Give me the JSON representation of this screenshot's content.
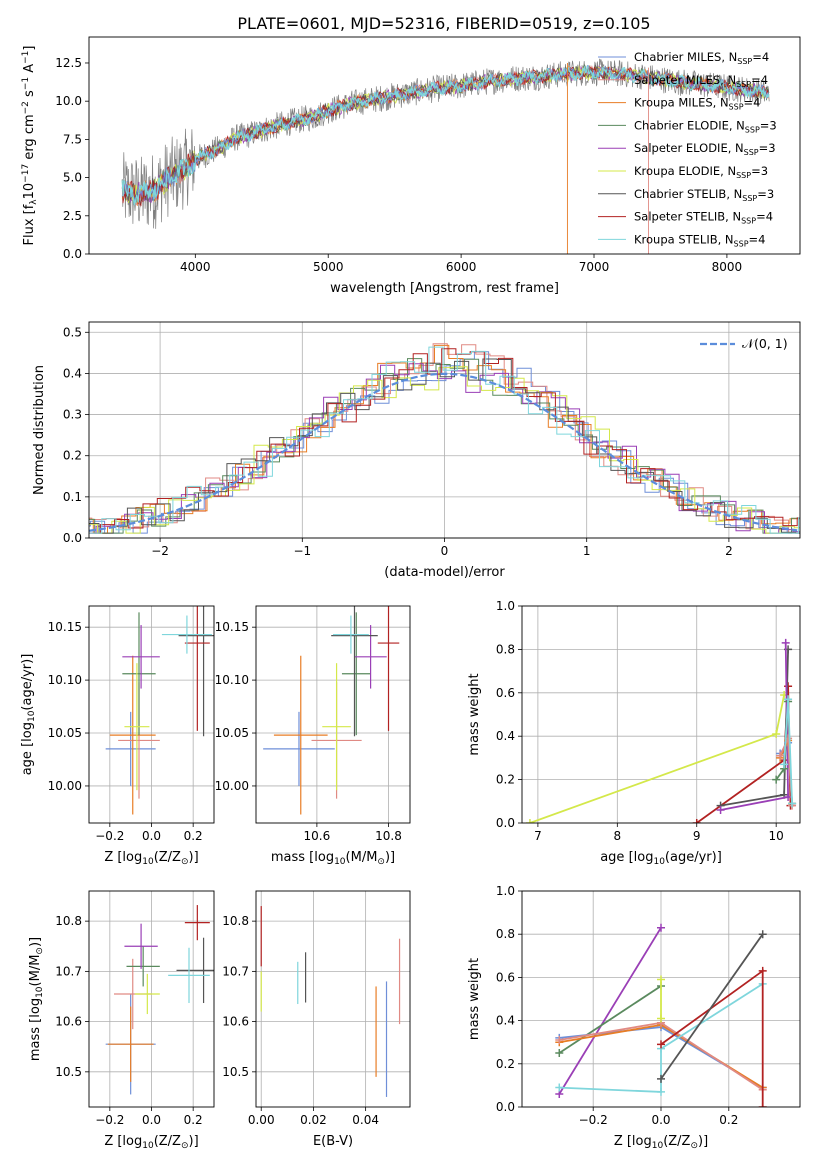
{
  "figure": {
    "title": "PLATE=0601, MJD=52316, FIBERID=0519, z=0.105"
  },
  "colors": {
    "chabrier_miles": "#6f8fd8",
    "salpeter_miles": "#e08a84",
    "kroupa_miles": "#e87d25",
    "chabrier_elodie": "#5a8a5e",
    "salpeter_elodie": "#9a3fb6",
    "kroupa_elodie": "#d4e84a",
    "chabrier_stelib": "#555555",
    "salpeter_stelib": "#b22222",
    "kroupa_stelib": "#7fd6dc",
    "spectrum_data": "#7f7f7f",
    "gaussian": "#5b8ddb",
    "grid": "#b0b0b0"
  },
  "chart_data": [
    {
      "id": "spectrum",
      "type": "line",
      "title": "PLATE=0601, MJD=52316, FIBERID=0519, z=0.105",
      "xlabel": "wavelength [Angstrom, rest frame]",
      "ylabel": "Flux [f",
      "ylabel_sub": "λ",
      "ylabel_rest": "10",
      "ylabel_exp": "−17",
      "ylabel_tail": " erg cm",
      "ylabel_exp2": "−2",
      "ylabel_tail2": " s",
      "ylabel_exp3": "−1",
      "ylabel_tail3": " A",
      "ylabel_exp4": "−1",
      "ylabel_end": "]",
      "xlim": [
        3200,
        8550
      ],
      "ylim": [
        0,
        14.2
      ],
      "xticks": [
        4000,
        5000,
        6000,
        7000,
        8000
      ],
      "xtick_labels": [
        "4000",
        "5000",
        "6000",
        "7000",
        "8000"
      ],
      "yticks": [
        0,
        2.5,
        5,
        7.5,
        10,
        12.5
      ],
      "ytick_labels": [
        "0.0",
        "2.5",
        "5.0",
        "7.5",
        "10.0",
        "12.5"
      ],
      "grid": false,
      "legend_position": "right",
      "legend": [
        {
          "label": "Chabrier MILES, N",
          "sub": "SSP",
          "tail": "=4",
          "color_key": "chabrier_miles"
        },
        {
          "label": "Salpeter MILES, N",
          "sub": "SSP",
          "tail": "=4",
          "color_key": "salpeter_miles"
        },
        {
          "label": "Kroupa MILES, N",
          "sub": "SSP",
          "tail": "=4",
          "color_key": "kroupa_miles"
        },
        {
          "label": "Chabrier ELODIE, N",
          "sub": "SSP",
          "tail": "=3",
          "color_key": "chabrier_elodie"
        },
        {
          "label": "Salpeter ELODIE, N",
          "sub": "SSP",
          "tail": "=3",
          "color_key": "salpeter_elodie"
        },
        {
          "label": "Kroupa ELODIE, N",
          "sub": "SSP",
          "tail": "=3",
          "color_key": "kroupa_elodie"
        },
        {
          "label": "Chabrier STELIB, N",
          "sub": "SSP",
          "tail": "=3",
          "color_key": "chabrier_stelib"
        },
        {
          "label": "Salpeter STELIB, N",
          "sub": "SSP",
          "tail": "=4",
          "color_key": "salpeter_stelib"
        },
        {
          "label": "Kroupa STELIB, N",
          "sub": "SSP",
          "tail": "=4",
          "color_key": "kroupa_stelib"
        }
      ],
      "continuum": {
        "x": [
          3450,
          3600,
          3700,
          3800,
          3900,
          4000,
          4100,
          4200,
          4300,
          4400,
          4500,
          4700,
          4900,
          5000,
          5200,
          5400,
          5600,
          5800,
          6000,
          6200,
          6400,
          6600,
          6800,
          7000,
          7200,
          7400,
          7600,
          7800,
          8000,
          8200,
          8320
        ],
        "y": [
          4.1,
          3.9,
          4.2,
          5.0,
          5.4,
          6.2,
          6.6,
          7.0,
          7.6,
          7.8,
          8.1,
          8.6,
          9.0,
          9.4,
          9.9,
          10.2,
          10.5,
          10.8,
          11.0,
          11.3,
          11.5,
          11.6,
          11.8,
          11.9,
          11.8,
          11.6,
          11.3,
          11.1,
          10.9,
          10.7,
          10.5
        ]
      }
    },
    {
      "id": "residuals",
      "type": "line",
      "xlabel": "(data-model)/error",
      "ylabel": "Normed distribution",
      "xlim": [
        -2.5,
        2.5
      ],
      "ylim": [
        0,
        0.525
      ],
      "xticks": [
        -2,
        -1,
        0,
        1,
        2
      ],
      "xtick_labels": [
        "−2",
        "−1",
        "0",
        "1",
        "2"
      ],
      "yticks": [
        0,
        0.1,
        0.2,
        0.3,
        0.4,
        0.5
      ],
      "ytick_labels": [
        "0.0",
        "0.1",
        "0.2",
        "0.3",
        "0.4",
        "0.5"
      ],
      "grid": true,
      "legend_position": "top-right",
      "legend": [
        {
          "label": "𝒩(0, 1)",
          "color_key": "gaussian"
        }
      ],
      "gaussian": {
        "mu": 0,
        "sigma": 1
      }
    },
    {
      "id": "age-vs-Z",
      "type": "scatter",
      "xlabel": "Z [log",
      "xlabel_sub": "10",
      "xlabel_rest": "(Z/Z",
      "xlabel_sub2": "⊙",
      "xlabel_end": ")]",
      "ylabel": "age  [log",
      "ylabel_sub": "10",
      "ylabel_rest": "(age/yr)]",
      "xlim": [
        -0.3,
        0.3
      ],
      "ylim": [
        9.965,
        10.17
      ],
      "xticks": [
        -0.2,
        0,
        0.2
      ],
      "xtick_labels": [
        "−0.2",
        "0.0",
        "0.2"
      ],
      "yticks": [
        10.0,
        10.05,
        10.1,
        10.15
      ],
      "ytick_labels": [
        "10.00",
        "10.05",
        "10.10",
        "10.15"
      ],
      "grid": true,
      "points": [
        {
          "color_key": "chabrier_miles",
          "x": -0.1,
          "xerr": 0.12,
          "y": 10.035,
          "yerr": 0.035
        },
        {
          "color_key": "salpeter_miles",
          "x": -0.06,
          "xerr": 0.1,
          "y": 10.043,
          "yerr": 0.055
        },
        {
          "color_key": "kroupa_miles",
          "x": -0.09,
          "xerr": 0.11,
          "y": 10.048,
          "yerr": 0.075
        },
        {
          "color_key": "chabrier_elodie",
          "x": -0.06,
          "xerr": 0.08,
          "y": 10.106,
          "yerr": 0.058
        },
        {
          "color_key": "salpeter_elodie",
          "x": -0.05,
          "xerr": 0.09,
          "y": 10.122,
          "yerr": 0.03
        },
        {
          "color_key": "kroupa_elodie",
          "x": -0.07,
          "xerr": 0.06,
          "y": 10.056,
          "yerr": 0.06
        },
        {
          "color_key": "chabrier_stelib",
          "x": 0.25,
          "xerr": 0.12,
          "y": 10.142,
          "yerr": 0.095
        },
        {
          "color_key": "salpeter_stelib",
          "x": 0.22,
          "xerr": 0.06,
          "y": 10.135,
          "yerr": 0.083
        },
        {
          "color_key": "kroupa_stelib",
          "x": 0.17,
          "xerr": 0.12,
          "y": 10.143,
          "yerr": 0.018
        }
      ]
    },
    {
      "id": "age-vs-mass",
      "type": "scatter",
      "xlabel": "mass [log",
      "xlabel_sub": "10",
      "xlabel_rest": "(M/M",
      "xlabel_sub2": "⊙",
      "xlabel_end": ")]",
      "ylabel": "",
      "xlim": [
        10.43,
        10.86
      ],
      "ylim": [
        9.965,
        10.17
      ],
      "xticks": [
        10.6,
        10.8
      ],
      "xtick_labels": [
        "10.6",
        "10.8"
      ],
      "yticks": [
        10.0,
        10.05,
        10.1,
        10.15
      ],
      "ytick_labels": [
        "10.00",
        "10.05",
        "10.10",
        "10.15"
      ],
      "grid": true,
      "points": [
        {
          "color_key": "chabrier_miles",
          "x": 10.55,
          "xerr": 0.1,
          "y": 10.035,
          "yerr": 0.035
        },
        {
          "color_key": "salpeter_miles",
          "x": 10.655,
          "xerr": 0.07,
          "y": 10.043,
          "yerr": 0.055
        },
        {
          "color_key": "kroupa_miles",
          "x": 10.555,
          "xerr": 0.075,
          "y": 10.048,
          "yerr": 0.075
        },
        {
          "color_key": "chabrier_elodie",
          "x": 10.71,
          "xerr": 0.04,
          "y": 10.106,
          "yerr": 0.058
        },
        {
          "color_key": "salpeter_elodie",
          "x": 10.75,
          "xerr": 0.045,
          "y": 10.122,
          "yerr": 0.03
        },
        {
          "color_key": "kroupa_elodie",
          "x": 10.655,
          "xerr": 0.04,
          "y": 10.056,
          "yerr": 0.06
        },
        {
          "color_key": "chabrier_stelib",
          "x": 10.705,
          "xerr": 0.065,
          "y": 10.142,
          "yerr": 0.095
        },
        {
          "color_key": "salpeter_stelib",
          "x": 10.8,
          "xerr": 0.03,
          "y": 10.135,
          "yerr": 0.083
        },
        {
          "color_key": "kroupa_stelib",
          "x": 10.695,
          "xerr": 0.05,
          "y": 10.143,
          "yerr": 0.018
        }
      ]
    },
    {
      "id": "weight-vs-age",
      "type": "line",
      "xlabel": "age  [log",
      "xlabel_sub": "10",
      "xlabel_rest": "(age/yr)]",
      "ylabel": "mass weight",
      "xlim": [
        6.8,
        10.3
      ],
      "ylim": [
        0,
        1.0
      ],
      "xticks": [
        7,
        8,
        9,
        10
      ],
      "xtick_labels": [
        "7",
        "8",
        "9",
        "10"
      ],
      "yticks": [
        0,
        0.2,
        0.4,
        0.6,
        0.8,
        1.0
      ],
      "ytick_labels": [
        "0.0",
        "0.2",
        "0.4",
        "0.6",
        "0.8",
        "1.0"
      ],
      "grid": true,
      "series": [
        {
          "color_key": "kroupa_elodie",
          "points": [
            [
              6.9,
              0.0
            ],
            [
              10.0,
              0.41
            ],
            [
              10.1,
              0.59
            ]
          ]
        },
        {
          "color_key": "salpeter_stelib",
          "points": [
            [
              9.0,
              0.0
            ],
            [
              10.1,
              0.29
            ],
            [
              10.15,
              0.63
            ],
            [
              10.18,
              0.08
            ]
          ]
        },
        {
          "color_key": "chabrier_stelib",
          "points": [
            [
              9.3,
              0.08
            ],
            [
              10.1,
              0.13
            ],
            [
              10.15,
              0.8
            ]
          ]
        },
        {
          "color_key": "salpeter_elodie",
          "points": [
            [
              9.3,
              0.06
            ],
            [
              10.15,
              0.12
            ],
            [
              10.12,
              0.83
            ]
          ]
        },
        {
          "color_key": "chabrier_elodie",
          "points": [
            [
              10.0,
              0.2
            ],
            [
              10.1,
              0.25
            ],
            [
              10.15,
              0.56
            ]
          ]
        },
        {
          "color_key": "chabrier_miles",
          "points": [
            [
              10.05,
              0.32
            ],
            [
              10.15,
              0.37
            ],
            [
              10.2,
              0.09
            ]
          ]
        },
        {
          "color_key": "kroupa_miles",
          "points": [
            [
              10.05,
              0.3
            ],
            [
              10.15,
              0.38
            ],
            [
              10.2,
              0.09
            ]
          ]
        },
        {
          "color_key": "salpeter_miles",
          "points": [
            [
              10.05,
              0.31
            ],
            [
              10.15,
              0.39
            ],
            [
              10.2,
              0.08
            ]
          ]
        },
        {
          "color_key": "kroupa_stelib",
          "points": [
            [
              10.1,
              0.27
            ],
            [
              10.15,
              0.57
            ],
            [
              10.2,
              0.09
            ]
          ]
        }
      ]
    },
    {
      "id": "mass-vs-Z",
      "type": "scatter",
      "xlabel": "Z [log",
      "xlabel_sub": "10",
      "xlabel_rest": "(Z/Z",
      "xlabel_sub2": "⊙",
      "xlabel_end": ")]",
      "ylabel": "mass [log",
      "ylabel_sub": "10",
      "ylabel_rest": "(M/M",
      "ylabel_sub2": "⊙",
      "ylabel_end": ")]",
      "xlim": [
        -0.3,
        0.3
      ],
      "ylim": [
        10.43,
        10.86
      ],
      "xticks": [
        -0.2,
        0,
        0.2
      ],
      "xtick_labels": [
        "−0.2",
        "0.0",
        "0.2"
      ],
      "yticks": [
        10.5,
        10.6,
        10.7,
        10.8
      ],
      "ytick_labels": [
        "10.5",
        "10.6",
        "10.7",
        "10.8"
      ],
      "grid": true,
      "points": [
        {
          "color_key": "chabrier_miles",
          "x": -0.1,
          "xerr": 0.12,
          "y": 10.555,
          "yerr": 0.1
        },
        {
          "color_key": "salpeter_miles",
          "x": -0.09,
          "xerr": 0.09,
          "y": 10.655,
          "yerr": 0.07
        },
        {
          "color_key": "kroupa_miles",
          "x": -0.1,
          "xerr": 0.11,
          "y": 10.555,
          "yerr": 0.075
        },
        {
          "color_key": "chabrier_elodie",
          "x": -0.04,
          "xerr": 0.08,
          "y": 10.71,
          "yerr": 0.04
        },
        {
          "color_key": "salpeter_elodie",
          "x": -0.05,
          "xerr": 0.08,
          "y": 10.75,
          "yerr": 0.045
        },
        {
          "color_key": "kroupa_elodie",
          "x": -0.02,
          "xerr": 0.06,
          "y": 10.655,
          "yerr": 0.04
        },
        {
          "color_key": "chabrier_stelib",
          "x": 0.25,
          "xerr": 0.13,
          "y": 10.702,
          "yerr": 0.065
        },
        {
          "color_key": "salpeter_stelib",
          "x": 0.22,
          "xerr": 0.06,
          "y": 10.797,
          "yerr": 0.035
        },
        {
          "color_key": "kroupa_stelib",
          "x": 0.18,
          "xerr": 0.1,
          "y": 10.692,
          "yerr": 0.055
        }
      ]
    },
    {
      "id": "mass-vs-EBV",
      "type": "scatter",
      "xlabel": "E(B-V)",
      "ylabel": "",
      "xlim": [
        -0.002,
        0.057
      ],
      "ylim": [
        10.43,
        10.86
      ],
      "xticks": [
        0,
        0.02,
        0.04
      ],
      "xtick_labels": [
        "0.00",
        "0.02",
        "0.04"
      ],
      "yticks": [
        10.5,
        10.6,
        10.7,
        10.8
      ],
      "ytick_labels": [
        "10.5",
        "10.6",
        "10.7",
        "10.8"
      ],
      "grid": true,
      "points": [
        {
          "color_key": "salpeter_stelib",
          "x": 0.0,
          "xerr": 0.0,
          "y": 10.77,
          "yerr": 0.06
        },
        {
          "color_key": "kroupa_elodie",
          "x": 0.0,
          "xerr": 0.0,
          "y": 10.66,
          "yerr": 0.04
        },
        {
          "color_key": "kroupa_stelib",
          "x": 0.014,
          "xerr": 0.0,
          "y": 10.677,
          "yerr": 0.042
        },
        {
          "color_key": "chabrier_stelib",
          "x": 0.017,
          "xerr": 0.0,
          "y": 10.688,
          "yerr": 0.05
        },
        {
          "color_key": "kroupa_miles",
          "x": 0.044,
          "xerr": 0.0,
          "y": 10.58,
          "yerr": 0.09
        },
        {
          "color_key": "chabrier_miles",
          "x": 0.048,
          "xerr": 0.0,
          "y": 10.565,
          "yerr": 0.115
        },
        {
          "color_key": "salpeter_miles",
          "x": 0.053,
          "xerr": 0.0,
          "y": 10.68,
          "yerr": 0.085
        }
      ]
    },
    {
      "id": "weight-vs-Z",
      "type": "line",
      "xlabel": "Z [log",
      "xlabel_sub": "10",
      "xlabel_rest": "(Z/Z",
      "xlabel_sub2": "⊙",
      "xlabel_end": ")]",
      "ylabel": "mass weight",
      "xlim": [
        -0.41,
        0.41
      ],
      "ylim": [
        0,
        1.0
      ],
      "xticks": [
        -0.2,
        0,
        0.2
      ],
      "xtick_labels": [
        "−0.2",
        "0.0",
        "0.2"
      ],
      "yticks": [
        0,
        0.2,
        0.4,
        0.6,
        0.8,
        1.0
      ],
      "ytick_labels": [
        "0.0",
        "0.2",
        "0.4",
        "0.6",
        "0.8",
        "1.0"
      ],
      "grid": true,
      "series": [
        {
          "color_key": "salpeter_elodie",
          "points": [
            [
              -0.3,
              0.06
            ],
            [
              0.0,
              0.83
            ]
          ]
        },
        {
          "color_key": "chabrier_elodie",
          "points": [
            [
              -0.3,
              0.25
            ],
            [
              0.0,
              0.56
            ]
          ]
        },
        {
          "color_key": "chabrier_miles",
          "points": [
            [
              -0.3,
              0.32
            ],
            [
              0.0,
              0.37
            ],
            [
              0.3,
              0.09
            ]
          ]
        },
        {
          "color_key": "kroupa_miles",
          "points": [
            [
              -0.3,
              0.3
            ],
            [
              0.0,
              0.38
            ],
            [
              0.3,
              0.09
            ]
          ]
        },
        {
          "color_key": "salpeter_miles",
          "points": [
            [
              -0.3,
              0.31
            ],
            [
              0.0,
              0.39
            ],
            [
              0.3,
              0.08
            ]
          ]
        },
        {
          "color_key": "kroupa_stelib",
          "points": [
            [
              -0.3,
              0.09
            ],
            [
              0.0,
              0.07
            ],
            [
              0.0,
              0.27
            ],
            [
              0.3,
              0.57
            ]
          ]
        },
        {
          "color_key": "salpeter_stelib",
          "points": [
            [
              0.0,
              0.29
            ],
            [
              0.3,
              0.63
            ],
            [
              0.3,
              0.0
            ]
          ]
        },
        {
          "color_key": "chabrier_stelib",
          "points": [
            [
              0.0,
              0.13
            ],
            [
              0.3,
              0.8
            ]
          ]
        },
        {
          "color_key": "kroupa_elodie",
          "points": [
            [
              0.0,
              0.41
            ],
            [
              0.0,
              0.59
            ]
          ]
        }
      ]
    }
  ]
}
